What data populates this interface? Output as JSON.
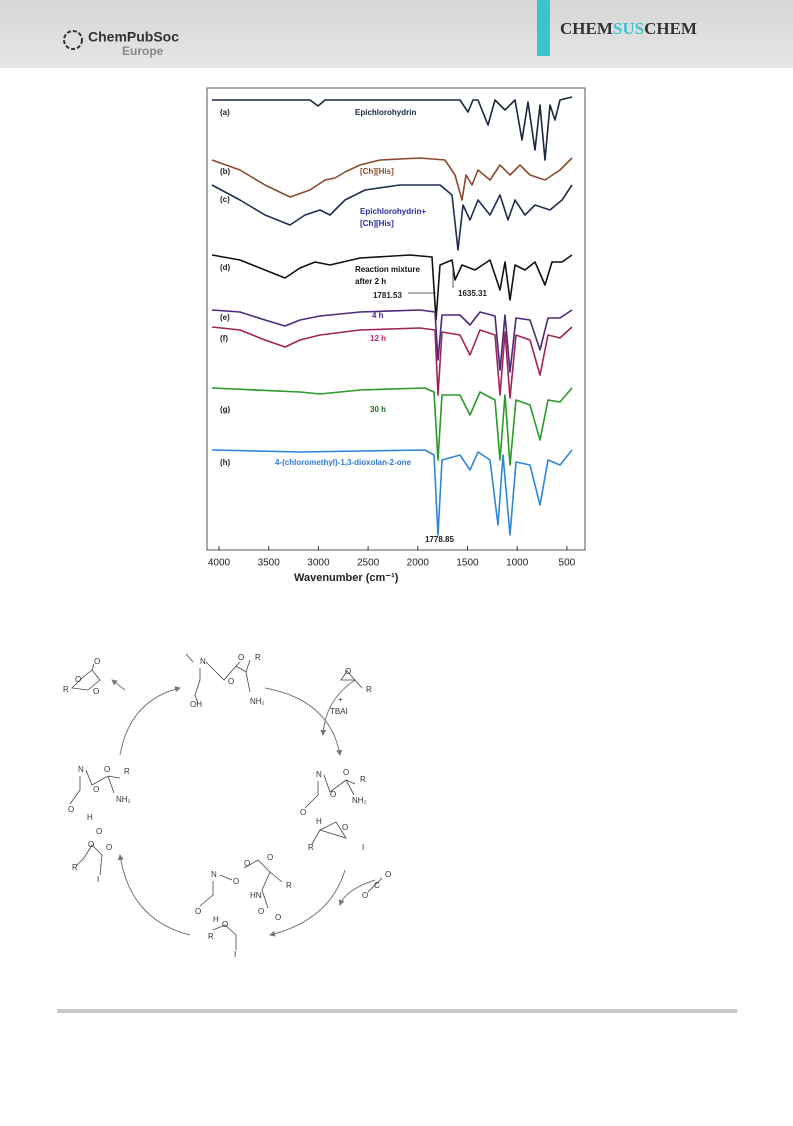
{
  "header": {
    "publisher": "ChemPubSoc",
    "region": "Europe",
    "journal": [
      "CHEM",
      "SUS",
      "CHEM"
    ]
  },
  "figure": {
    "xticks": [
      "4000",
      "3500",
      "3000",
      "2500",
      "2000",
      "1500",
      "1000",
      "500"
    ],
    "xlabel": "Wavenumber (cm⁻¹)",
    "traces": [
      {
        "id": "(a)",
        "name": [
          "Epichlorohydrin"
        ]
      },
      {
        "id": "(b)",
        "name": [
          "[Ch][His]"
        ]
      },
      {
        "id": "(c)",
        "name": [
          "Epichlorohydrin+",
          "[Ch][His]"
        ]
      },
      {
        "id": "(d)",
        "name": [
          "Reaction mixture",
          "after 2 h"
        ]
      },
      {
        "id": "(e)",
        "name": [
          "4 h"
        ]
      },
      {
        "id": "(f)",
        "name": [
          "12 h"
        ]
      },
      {
        "id": "(g)",
        "name": [
          "30 h"
        ]
      },
      {
        "id": "(h)",
        "name": [
          "4-(chloromethyl)-1,3-dioxolan-2-one"
        ]
      }
    ],
    "annotations": [
      "1781.53",
      "1635.31",
      "1778.85"
    ]
  },
  "scheme": {
    "labels": [
      "O",
      "O",
      "O",
      "R",
      "N",
      "O",
      "O",
      "R",
      "OH",
      "NH₂",
      "O",
      "R",
      "+",
      "TBAI",
      "N",
      "O",
      "O",
      "R",
      "NH₂",
      "O",
      "H",
      "O",
      "R",
      "I",
      "N",
      "O",
      "O",
      "R",
      "NH₂",
      "O",
      "H",
      "O",
      "O",
      "O",
      "R",
      "I",
      "N",
      "O",
      "O",
      "O",
      "R",
      "HN",
      "O",
      "O",
      "O",
      "H",
      "O",
      "R",
      "I",
      "O",
      "C",
      "O"
    ]
  }
}
